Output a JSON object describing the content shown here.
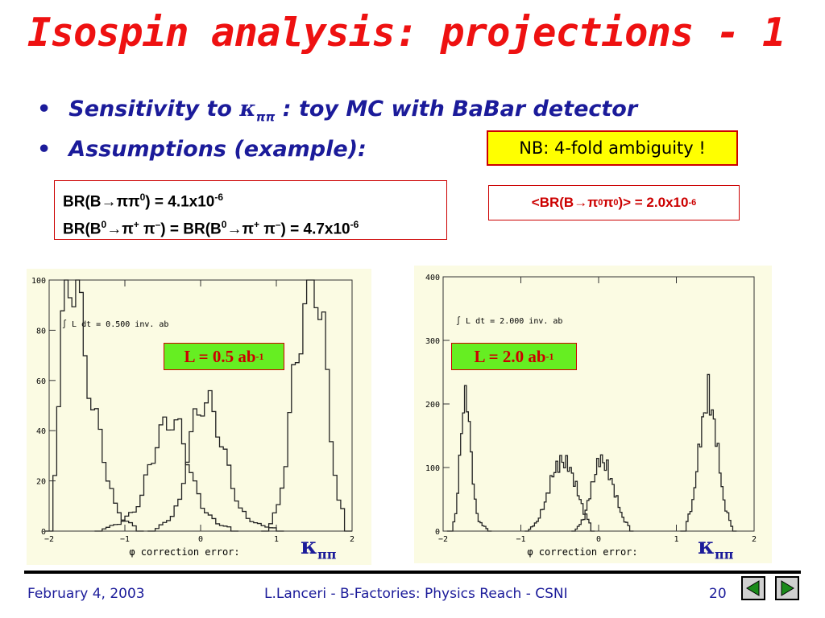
{
  "title": "Isospin analysis: projections - 1",
  "bullets": [
    {
      "pre": "Sensitivity to ",
      "sym": "κ",
      "sub": "ππ",
      "post": " : toy MC with BaBar detector"
    },
    {
      "text": "Assumptions (example):"
    }
  ],
  "nb_note": "NB: 4-fold ambiguity !",
  "br_lines": {
    "l1_a": "BR(B",
    "l1_b": "→π",
    "l1_c": "π",
    "l1_d": "0",
    "l1_e": ") = 4.1x10",
    "l1_exp": "-6",
    "l2_a": "BR(B",
    "l2_a0": "0",
    "l2_b": "→π",
    "l2_plus": "+",
    "l2_c": " π",
    "l2_minus": "–",
    "l2_d": ") = BR(B",
    "l2_d0": "0",
    "l2_e": "→π",
    "l2_plus2": "+",
    "l2_f": " π",
    "l2_minus2": "–",
    "l2_g": ") = 4.7x10",
    "l2_exp": "-6"
  },
  "br_red": {
    "a": "<BR(B",
    "b": "→π",
    "c": "0",
    "d": "π",
    "e": "0",
    "f": ")> = 2.0x10",
    "exp": "-6"
  },
  "kappa": {
    "sym": "κ",
    "sub": "ππ"
  },
  "footer": {
    "date": "February 4, 2003",
    "center": "L.Lanceri - B-Factories: Physics Reach - CSNI",
    "page": "20"
  },
  "colors": {
    "title": "#ee1111",
    "text_blue": "#1b1b9a",
    "highlight": "#ffff00",
    "lbox": "#66ee22",
    "plot_bg": "#fbfbe3"
  },
  "chart_data": [
    {
      "type": "histogram",
      "annotation": "∫ L dt =   0.500 inv. ab",
      "label": {
        "main": "L = 0.5 ab",
        "sup": "-1"
      },
      "xlabel": "φ correction error:",
      "xlim": [
        -2,
        2
      ],
      "ylim": [
        0,
        100
      ],
      "xticks": [
        "−2",
        "−1",
        "0",
        "1",
        "2"
      ],
      "yticks": [
        "0",
        "20",
        "40",
        "60",
        "80",
        "100"
      ],
      "series": [
        {
          "values": [
            [
              -1.95,
              25
            ],
            [
              -1.85,
              80
            ],
            [
              -1.78,
              100
            ],
            [
              -1.72,
              100
            ],
            [
              -1.65,
              100
            ],
            [
              -1.55,
              70
            ],
            [
              -1.45,
              50
            ],
            [
              -1.35,
              38
            ],
            [
              -1.25,
              22
            ],
            [
              -1.15,
              10
            ],
            [
              -1.05,
              5
            ],
            [
              -0.95,
              3
            ],
            [
              -0.85,
              1
            ]
          ]
        },
        {
          "values": [
            [
              -1.3,
              1
            ],
            [
              -1.1,
              3
            ],
            [
              -0.9,
              8
            ],
            [
              -0.8,
              14
            ],
            [
              -0.7,
              26
            ],
            [
              -0.6,
              35
            ],
            [
              -0.5,
              42
            ],
            [
              -0.4,
              45
            ],
            [
              -0.3,
              40
            ],
            [
              -0.2,
              30
            ],
            [
              -0.1,
              18
            ],
            [
              0.0,
              10
            ],
            [
              0.1,
              6
            ],
            [
              0.2,
              3
            ],
            [
              0.4,
              1
            ]
          ]
        },
        {
          "values": [
            [
              -0.6,
              1
            ],
            [
              -0.4,
              6
            ],
            [
              -0.3,
              12
            ],
            [
              -0.2,
              30
            ],
            [
              -0.1,
              44
            ],
            [
              0.0,
              52
            ],
            [
              0.1,
              50
            ],
            [
              0.2,
              42
            ],
            [
              0.3,
              30
            ],
            [
              0.4,
              18
            ],
            [
              0.5,
              9
            ],
            [
              0.6,
              5
            ],
            [
              0.8,
              2
            ],
            [
              1.0,
              1
            ]
          ]
        },
        {
          "values": [
            [
              0.9,
              3
            ],
            [
              1.0,
              10
            ],
            [
              1.1,
              28
            ],
            [
              1.2,
              60
            ],
            [
              1.3,
              80
            ],
            [
              1.4,
              100
            ],
            [
              1.5,
              100
            ],
            [
              1.6,
              80
            ],
            [
              1.7,
              38
            ],
            [
              1.8,
              12
            ],
            [
              1.9,
              4
            ]
          ]
        }
      ]
    },
    {
      "type": "histogram",
      "annotation": "∫ L dt =   2.000 inv. ab",
      "label": {
        "main": "L = 2.0 ab",
        "sup": "-1"
      },
      "xlabel": "φ correction error:",
      "xlim": [
        -2,
        2
      ],
      "ylim": [
        0,
        400
      ],
      "xticks": [
        "−2",
        "−1",
        "0",
        "1",
        "2"
      ],
      "yticks": [
        "0",
        "100",
        "200",
        "300",
        "400"
      ],
      "series": [
        {
          "values": [
            [
              -1.9,
              5
            ],
            [
              -1.85,
              25
            ],
            [
              -1.8,
              110
            ],
            [
              -1.75,
              200
            ],
            [
              -1.7,
              210
            ],
            [
              -1.65,
              120
            ],
            [
              -1.6,
              45
            ],
            [
              -1.55,
              15
            ],
            [
              -1.45,
              4
            ]
          ]
        },
        {
          "values": [
            [
              -0.9,
              3
            ],
            [
              -0.8,
              15
            ],
            [
              -0.7,
              45
            ],
            [
              -0.6,
              90
            ],
            [
              -0.5,
              110
            ],
            [
              -0.4,
              105
            ],
            [
              -0.3,
              70
            ],
            [
              -0.2,
              30
            ],
            [
              -0.1,
              8
            ]
          ]
        },
        {
          "values": [
            [
              -0.3,
              3
            ],
            [
              -0.2,
              20
            ],
            [
              -0.1,
              70
            ],
            [
              0.0,
              115
            ],
            [
              0.1,
              100
            ],
            [
              0.2,
              60
            ],
            [
              0.3,
              20
            ],
            [
              0.4,
              5
            ]
          ]
        },
        {
          "values": [
            [
              1.1,
              5
            ],
            [
              1.2,
              45
            ],
            [
              1.3,
              150
            ],
            [
              1.4,
              220
            ],
            [
              1.5,
              150
            ],
            [
              1.6,
              45
            ],
            [
              1.7,
              8
            ]
          ]
        }
      ]
    }
  ]
}
